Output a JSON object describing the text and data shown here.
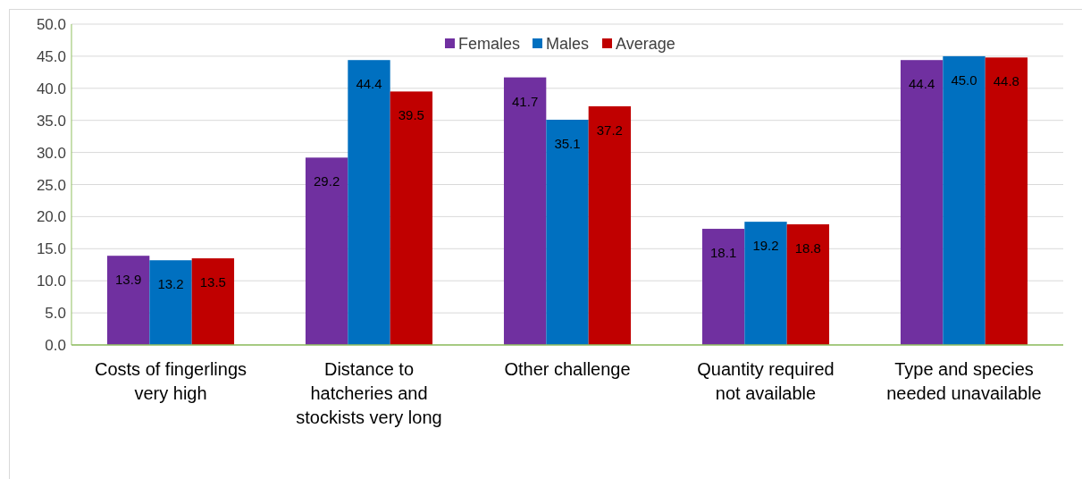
{
  "chart_data": {
    "type": "bar",
    "categories": [
      "Costs of fingerlings very high",
      "Distance to hatcheries and stockists very long",
      "Other challenge",
      "Quantity required not available",
      "Type and species needed unavailable"
    ],
    "series": [
      {
        "name": "Females",
        "color": "#7030a0",
        "values": [
          13.9,
          29.2,
          41.7,
          18.1,
          44.4
        ],
        "value_labels": [
          "13.9",
          "29.2",
          "41.7",
          "18.1",
          "44.4"
        ]
      },
      {
        "name": "Males",
        "color": "#0070c0",
        "values": [
          13.2,
          44.4,
          35.1,
          19.2,
          45.0
        ],
        "value_labels": [
          "13.2",
          "44.4",
          "35.1",
          "19.2",
          "45.0"
        ]
      },
      {
        "name": "Average",
        "color": "#c00000",
        "values": [
          13.5,
          39.5,
          37.2,
          18.8,
          44.8
        ],
        "value_labels": [
          "13.5",
          "39.5",
          "37.2",
          "18.8",
          "44.8"
        ]
      }
    ],
    "ylim": [
      0,
      50
    ],
    "yticks": [
      {
        "value": 0,
        "label": "0.0"
      },
      {
        "value": 5,
        "label": "5.0"
      },
      {
        "value": 10,
        "label": "10.0"
      },
      {
        "value": 15,
        "label": "15.0"
      },
      {
        "value": 20,
        "label": "20.0"
      },
      {
        "value": 25,
        "label": "25.0"
      },
      {
        "value": 30,
        "label": "30.0"
      },
      {
        "value": 35,
        "label": "35.0"
      },
      {
        "value": 40,
        "label": "40.0"
      },
      {
        "value": 45,
        "label": "45.0"
      },
      {
        "value": 50,
        "label": "50.0"
      }
    ],
    "grid": "y",
    "legend": "top"
  }
}
